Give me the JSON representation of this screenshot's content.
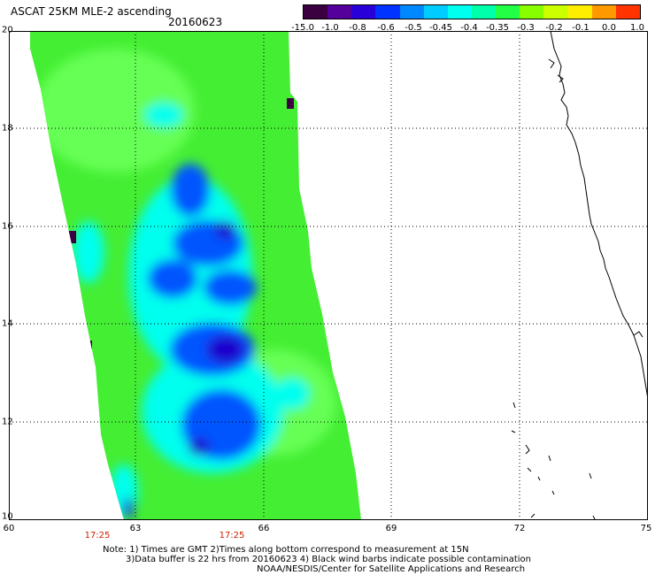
{
  "header": {
    "title": "ASCAT 25KM MLE-2 ascending",
    "date": "20160623"
  },
  "colorbar": {
    "tick_labels": [
      "-15.0",
      "-1.0",
      "-0.8",
      "-0.6",
      "-0.5",
      "-0.45",
      "-0.4",
      "-0.35",
      "-0.3",
      "-0.2",
      "-0.1",
      "0.0",
      "1.0"
    ],
    "colors": [
      "#3a0040",
      "#55009a",
      "#2a00d8",
      "#0033ff",
      "#0088ff",
      "#00ccff",
      "#00ffee",
      "#00ffaa",
      "#22ff44",
      "#88ff00",
      "#ccff00",
      "#ffee00",
      "#ff9900",
      "#ff3300"
    ]
  },
  "map": {
    "lat_labels": [
      "20",
      "18",
      "16",
      "14",
      "12",
      "10"
    ],
    "lon_labels": [
      "60",
      "63",
      "66",
      "69",
      "72",
      "75"
    ],
    "time_labels": [
      "17:25",
      "17:25"
    ],
    "swath_colors": {
      "green": "#44ee33",
      "light_green": "#66ff55",
      "cyan": "#00ffee",
      "blue": "#0055ff",
      "dark_blue": "#1a00cc",
      "purple": "#3a0040"
    },
    "coast_color": "#000000",
    "grid_style": "dotted"
  },
  "footer": {
    "note_line1": "Note: 1) Times are GMT 2)Times along bottom correspond to measurement at 15N",
    "note_line2": "3)Data buffer is 22 hrs from 20160623 4) Black wind barbs indicate possible contamination",
    "note_line3": "NOAA/NESDIS/Center for Satellite Applications and Research"
  }
}
